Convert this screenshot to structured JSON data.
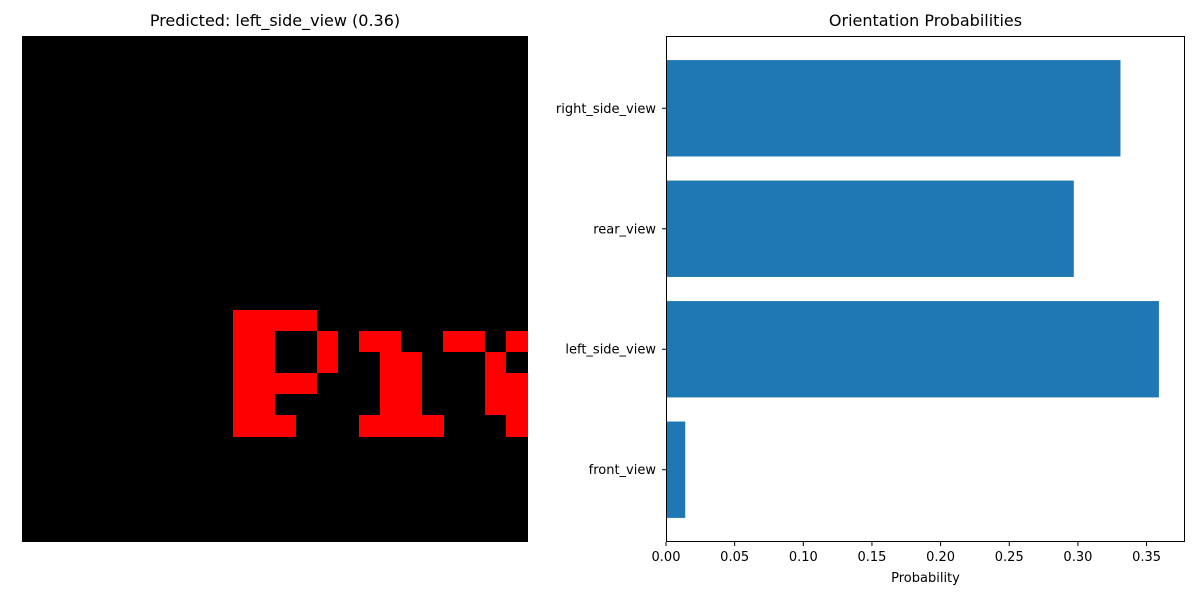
{
  "left_panel": {
    "title": "Predicted: left_side_view (0.36)",
    "image": {
      "background_color": "#000000",
      "glyph_color": "#ff0000",
      "visible_text": "Pr"
    }
  },
  "chart_data": {
    "type": "bar",
    "orientation": "horizontal",
    "title": "Orientation Probabilities",
    "xlabel": "Probability",
    "ylabel": "",
    "categories": [
      "front_view",
      "left_side_view",
      "rear_view",
      "right_side_view"
    ],
    "values": [
      0.014,
      0.359,
      0.297,
      0.331
    ],
    "xlim": [
      0,
      0.378
    ],
    "xticks": [
      0.0,
      0.05,
      0.1,
      0.15,
      0.2,
      0.25,
      0.3,
      0.35
    ],
    "xtick_labels": [
      "0.00",
      "0.05",
      "0.10",
      "0.15",
      "0.20",
      "0.25",
      "0.30",
      "0.35"
    ],
    "bar_color": "#1f77b4",
    "grid": false,
    "legend": "none"
  }
}
